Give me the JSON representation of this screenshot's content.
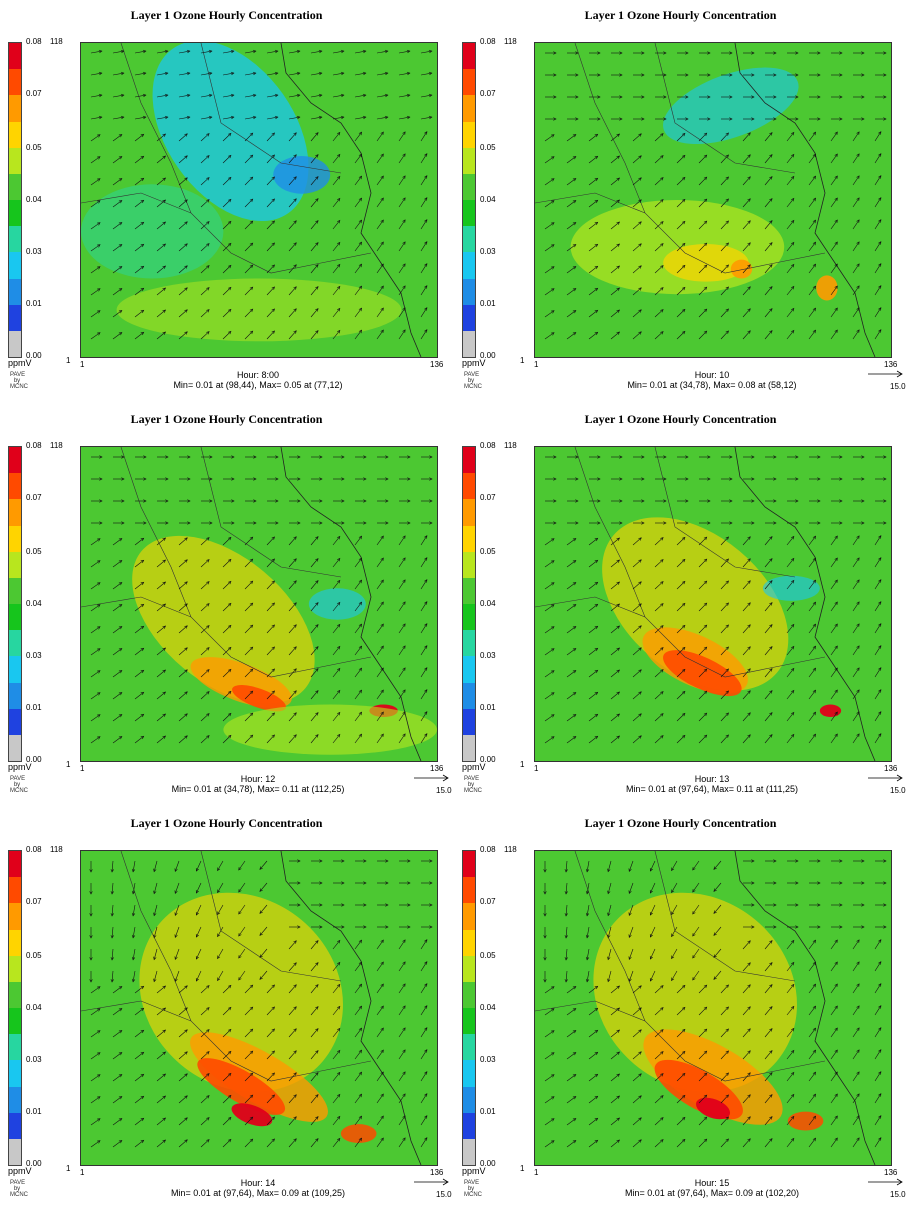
{
  "panels": [
    {
      "title": "Layer 1  Ozone Hourly Concentration",
      "hour": "Hour: 8:00",
      "stats": "Min=   0.01 at (98,44), Max=   0.05 at (77,12)",
      "ref": "",
      "credit": [
        "PAVE",
        "by",
        "MCNC"
      ]
    },
    {
      "title": "Layer 1  Ozone Hourly Concentration",
      "hour": "Hour: 10",
      "stats": "Min=   0.01 at (34,78), Max=   0.08 at (58,12)",
      "ref": "15.0",
      "credit": [
        "PAVE",
        "by",
        "MCNC"
      ]
    },
    {
      "title": "Layer 1  Ozone Hourly Concentration",
      "hour": "Hour: 12",
      "stats": "Min=   0.01 at (34,78), Max=   0.11 at (112,25)",
      "ref": "15.0",
      "credit": [
        "PAVE",
        "by",
        "MCNC"
      ]
    },
    {
      "title": "Layer 1  Ozone Hourly Concentration",
      "hour": "Hour: 13",
      "stats": "Min=   0.01 at (97,64), Max=   0.11 at (111,25)",
      "ref": "15.0",
      "credit": [
        "PAVE",
        "by",
        "MCNC"
      ]
    },
    {
      "title": "Layer 1  Ozone Hourly Concentration",
      "hour": "Hour: 14",
      "stats": "Min=   0.01 at (97,64), Max=   0.09 at (109,25)",
      "ref": "15.0",
      "credit": [
        "PAVE",
        "by",
        "MCNC"
      ]
    },
    {
      "title": "Layer 1  Ozone Hourly Concentration",
      "hour": "Hour: 15",
      "stats": "Min=   0.01 at (97,64), Max=   0.09 at (102,20)",
      "ref": "15.0",
      "credit": [
        "PAVE",
        "by",
        "MCNC"
      ]
    }
  ],
  "legend": {
    "unit": "ppmV",
    "ticks": [
      "0.08",
      "0.07",
      "0.05",
      "0.04",
      "0.03",
      "0.01",
      "0.00"
    ],
    "colors": [
      "#e0001a",
      "#ff4a00",
      "#ff9a00",
      "#ffd400",
      "#b8e61e",
      "#4cc832",
      "#16c51c",
      "#27d6a0",
      "#19c7f0",
      "#1f8de6",
      "#1f42e0",
      "#c8c8c8"
    ]
  },
  "axes": {
    "x_min": "1",
    "x_max": "136",
    "y_min": "1",
    "y_max": "118"
  },
  "chart_data": [
    {
      "type": "heatmap",
      "title": "Layer 1  Ozone Hourly Concentration",
      "hour": "8:00",
      "units": "ppmV",
      "colorbar_ticks": [
        0.0,
        0.01,
        0.03,
        0.04,
        0.05,
        0.07,
        0.08
      ],
      "x_range": [
        1,
        136
      ],
      "y_range": [
        1,
        118
      ],
      "min": {
        "value": 0.01,
        "at": [
          98,
          44
        ]
      },
      "max": {
        "value": 0.05,
        "at": [
          77,
          12
        ]
      }
    },
    {
      "type": "heatmap",
      "title": "Layer 1  Ozone Hourly Concentration",
      "hour": "10",
      "units": "ppmV",
      "colorbar_ticks": [
        0.0,
        0.01,
        0.03,
        0.04,
        0.05,
        0.07,
        0.08
      ],
      "x_range": [
        1,
        136
      ],
      "y_range": [
        1,
        118
      ],
      "min": {
        "value": 0.01,
        "at": [
          34,
          78
        ]
      },
      "max": {
        "value": 0.08,
        "at": [
          58,
          12
        ]
      },
      "vector_reference": 15.0
    },
    {
      "type": "heatmap",
      "title": "Layer 1  Ozone Hourly Concentration",
      "hour": "12",
      "units": "ppmV",
      "colorbar_ticks": [
        0.0,
        0.01,
        0.03,
        0.04,
        0.05,
        0.07,
        0.08
      ],
      "x_range": [
        1,
        136
      ],
      "y_range": [
        1,
        118
      ],
      "min": {
        "value": 0.01,
        "at": [
          34,
          78
        ]
      },
      "max": {
        "value": 0.11,
        "at": [
          112,
          25
        ]
      },
      "vector_reference": 15.0
    },
    {
      "type": "heatmap",
      "title": "Layer 1  Ozone Hourly Concentration",
      "hour": "13",
      "units": "ppmV",
      "colorbar_ticks": [
        0.0,
        0.01,
        0.03,
        0.04,
        0.05,
        0.07,
        0.08
      ],
      "x_range": [
        1,
        136
      ],
      "y_range": [
        1,
        118
      ],
      "min": {
        "value": 0.01,
        "at": [
          97,
          64
        ]
      },
      "max": {
        "value": 0.11,
        "at": [
          111,
          25
        ]
      },
      "vector_reference": 15.0
    },
    {
      "type": "heatmap",
      "title": "Layer 1  Ozone Hourly Concentration",
      "hour": "14",
      "units": "ppmV",
      "colorbar_ticks": [
        0.0,
        0.01,
        0.03,
        0.04,
        0.05,
        0.07,
        0.08
      ],
      "x_range": [
        1,
        136
      ],
      "y_range": [
        1,
        118
      ],
      "min": {
        "value": 0.01,
        "at": [
          97,
          64
        ]
      },
      "max": {
        "value": 0.09,
        "at": [
          109,
          25
        ]
      },
      "vector_reference": 15.0
    },
    {
      "type": "heatmap",
      "title": "Layer 1  Ozone Hourly Concentration",
      "hour": "15",
      "units": "ppmV",
      "colorbar_ticks": [
        0.0,
        0.01,
        0.03,
        0.04,
        0.05,
        0.07,
        0.08
      ],
      "x_range": [
        1,
        136
      ],
      "y_range": [
        1,
        118
      ],
      "min": {
        "value": 0.01,
        "at": [
          97,
          64
        ]
      },
      "max": {
        "value": 0.09,
        "at": [
          102,
          20
        ]
      },
      "vector_reference": 15.0
    }
  ]
}
